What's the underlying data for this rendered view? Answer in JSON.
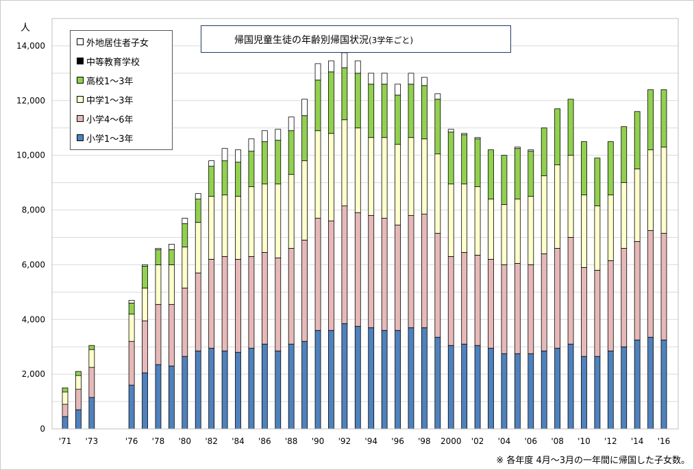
{
  "chart_data": {
    "type": "bar",
    "stacked": true,
    "title": "帰国児童生徒の年齢別帰国状況",
    "subtitle": "(3学年ごと)",
    "ylabel": "人",
    "ylim": [
      0,
      15000
    ],
    "y_ticks": [
      "0",
      "2,000",
      "4,000",
      "6,000",
      "8,000",
      "10,000",
      "12,000",
      "14,000"
    ],
    "y_tick_values": [
      0,
      2000,
      4000,
      6000,
      8000,
      10000,
      12000,
      14000
    ],
    "grid": true,
    "legend_position": "top-left",
    "footnote": "※ 各年度 4月～3月の一年間に帰国した子女数。",
    "x_tick_labels": [
      "'71",
      "'73",
      "'76",
      "'78",
      "'80",
      "'82",
      "'84",
      "'86",
      "'88",
      "'90",
      "'92",
      "'94",
      "'96",
      "'98",
      "2000",
      "'02",
      "'04",
      "'06",
      "'08",
      "'10",
      "'12",
      "'14",
      "'16"
    ],
    "x_tick_years": [
      1971,
      1973,
      1976,
      1978,
      1980,
      1982,
      1984,
      1986,
      1988,
      1990,
      1992,
      1994,
      1996,
      1998,
      2000,
      2002,
      2004,
      2006,
      2008,
      2010,
      2012,
      2014,
      2016
    ],
    "x": [
      1971,
      1972,
      1973,
      1976,
      1977,
      1978,
      1979,
      1980,
      1981,
      1982,
      1983,
      1984,
      1985,
      1986,
      1987,
      1988,
      1989,
      1990,
      1991,
      1992,
      1993,
      1994,
      1995,
      1996,
      1997,
      1998,
      1999,
      2000,
      2001,
      2002,
      2003,
      2004,
      2005,
      2006,
      2007,
      2008,
      2009,
      2010,
      2011,
      2012,
      2013,
      2014,
      2015,
      2016
    ],
    "series": [
      {
        "name": "小学1～3年",
        "color": "#4f81bd",
        "values": [
          450,
          700,
          1150,
          1600,
          2050,
          2350,
          2300,
          2650,
          2850,
          2950,
          2850,
          2800,
          2950,
          3100,
          2850,
          3100,
          3200,
          3600,
          3600,
          3850,
          3750,
          3700,
          3600,
          3600,
          3700,
          3700,
          3350,
          3050,
          3100,
          3050,
          2950,
          2750,
          2750,
          2750,
          2850,
          2950,
          3100,
          2650,
          2650,
          2850,
          3000,
          3250,
          3350,
          3250
        ]
      },
      {
        "name": "小学4～6年",
        "color": "#e6b9b8",
        "values": [
          450,
          750,
          1100,
          1600,
          1900,
          2200,
          2250,
          2500,
          2850,
          3250,
          3450,
          3400,
          3350,
          3350,
          3400,
          3500,
          3700,
          4100,
          4000,
          4300,
          4150,
          4100,
          4100,
          3850,
          4100,
          4150,
          3800,
          3250,
          3350,
          3300,
          3250,
          3250,
          3300,
          3250,
          3550,
          3650,
          3900,
          3250,
          3150,
          3300,
          3600,
          3600,
          3900,
          3900
        ]
      },
      {
        "name": "中学1～3年",
        "color": "#ffffcc",
        "values": [
          450,
          500,
          650,
          1000,
          1200,
          1450,
          1450,
          1500,
          1850,
          2300,
          2250,
          2300,
          2550,
          2500,
          2700,
          2700,
          2900,
          3200,
          3200,
          3150,
          3100,
          2850,
          2950,
          2950,
          2850,
          2750,
          2900,
          2650,
          2500,
          2500,
          2200,
          2200,
          2350,
          2500,
          2850,
          3050,
          3000,
          2650,
          2350,
          2400,
          2400,
          2650,
          2950,
          3150
        ]
      },
      {
        "name": "高校1～3年",
        "color": "#92d050",
        "values": [
          150,
          150,
          150,
          400,
          800,
          550,
          550,
          850,
          850,
          1100,
          1250,
          1250,
          1300,
          1550,
          1600,
          1600,
          1650,
          1850,
          2250,
          1900,
          2000,
          1950,
          1950,
          1800,
          1950,
          1950,
          2000,
          1900,
          1800,
          1750,
          1800,
          1800,
          1850,
          1650,
          1750,
          2050,
          2050,
          1950,
          1750,
          1950,
          2050,
          2100,
          2200,
          2100
        ]
      },
      {
        "name": "中等教育学校",
        "color": "#000000",
        "values": [
          0,
          0,
          0,
          0,
          0,
          0,
          0,
          0,
          0,
          0,
          0,
          0,
          0,
          0,
          0,
          0,
          0,
          0,
          0,
          0,
          0,
          0,
          0,
          0,
          0,
          0,
          0,
          0,
          0,
          0,
          0,
          0,
          0,
          0,
          0,
          0,
          0,
          0,
          0,
          0,
          0,
          0,
          0,
          0
        ]
      },
      {
        "name": "外地居住者子女",
        "color": "#ffffff",
        "values": [
          0,
          0,
          0,
          100,
          50,
          50,
          200,
          200,
          200,
          200,
          450,
          450,
          450,
          400,
          400,
          500,
          600,
          600,
          400,
          550,
          450,
          400,
          400,
          400,
          400,
          300,
          200,
          100,
          50,
          50,
          0,
          0,
          50,
          50,
          0,
          0,
          0,
          0,
          0,
          0,
          0,
          0,
          0,
          0
        ]
      }
    ]
  }
}
